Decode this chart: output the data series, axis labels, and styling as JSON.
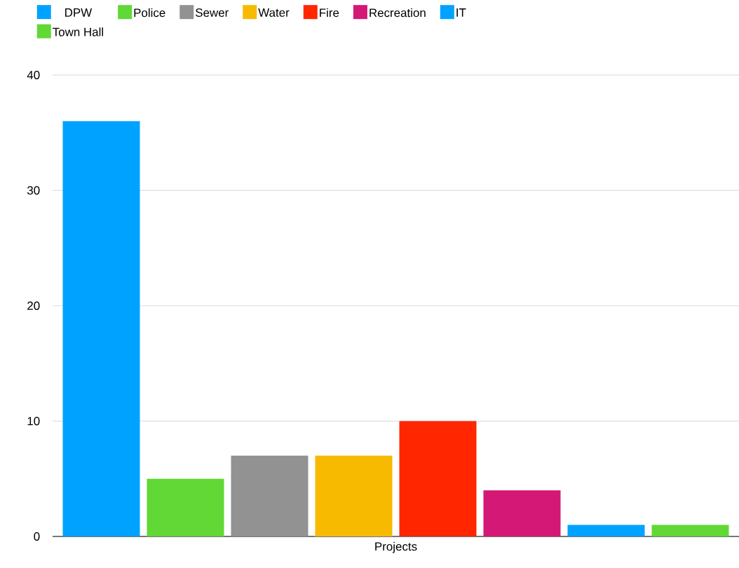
{
  "chart_data": {
    "type": "bar",
    "categories": [
      "Projects"
    ],
    "series": [
      {
        "name": "DPW",
        "color": "#00a2ff",
        "values": [
          36
        ]
      },
      {
        "name": "Police",
        "color": "#61d836",
        "values": [
          5
        ]
      },
      {
        "name": "Sewer",
        "color": "#929292",
        "values": [
          7
        ]
      },
      {
        "name": "Water",
        "color": "#f8ba00",
        "values": [
          7
        ]
      },
      {
        "name": "Fire",
        "color": "#ff2600",
        "values": [
          10
        ]
      },
      {
        "name": "Recreation",
        "color": "#d41876",
        "values": [
          4
        ]
      },
      {
        "name": "IT",
        "color": "#00a2ff",
        "values": [
          1
        ]
      },
      {
        "name": "Town Hall",
        "color": "#61d836",
        "values": [
          1
        ]
      }
    ],
    "ylim": [
      0,
      40
    ],
    "yticks": [
      0,
      10,
      20,
      30,
      40
    ],
    "grid": "y",
    "legend": "top"
  }
}
